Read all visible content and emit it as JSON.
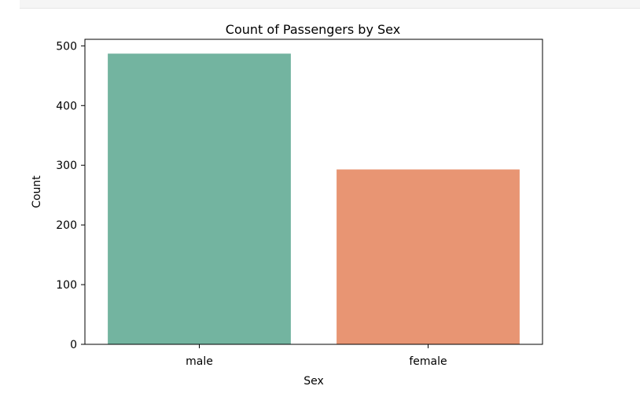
{
  "chart_data": {
    "type": "bar",
    "title": "Count of Passengers by Sex",
    "xlabel": "Sex",
    "ylabel": "Count",
    "categories": [
      "male",
      "female"
    ],
    "values": [
      487,
      293
    ],
    "ylim": [
      0,
      511
    ],
    "yticks": [
      "0",
      "100",
      "200",
      "300",
      "400",
      "500"
    ],
    "colors": [
      "#73b4a0",
      "#e89573"
    ],
    "grid": false
  }
}
